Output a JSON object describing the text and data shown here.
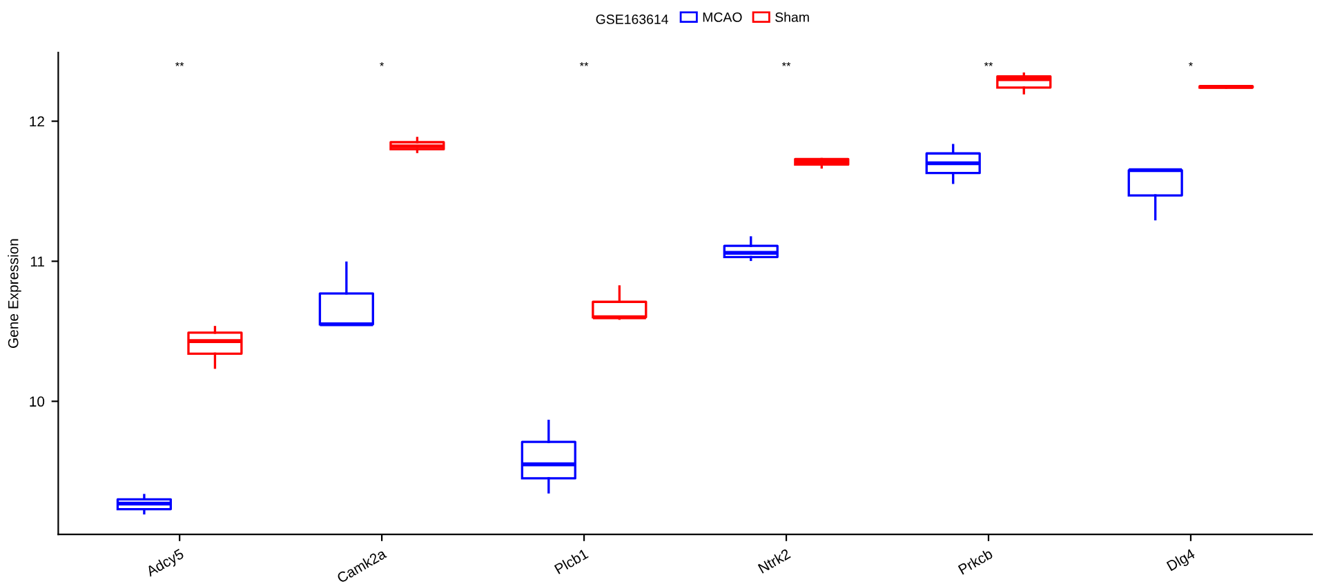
{
  "chart_data": {
    "type": "box",
    "ylabel": "Gene Expression",
    "legend_title": "GSE163614",
    "legend": "top",
    "grid": false,
    "categories": [
      "Adcy5",
      "Camk2a",
      "Plcb1",
      "Ntrk2",
      "Prkcb",
      "Dlg4"
    ],
    "ylim": [
      9.05,
      12.49
    ],
    "yticks": [
      10,
      11,
      12
    ],
    "series": [
      {
        "name": "MCAO",
        "color": "#0000ff",
        "boxes": [
          {
            "low": 9.2,
            "q1": 9.23,
            "median": 9.27,
            "q3": 9.3,
            "high": 9.33
          },
          {
            "low": 10.55,
            "q1": 10.55,
            "median": 10.55,
            "q3": 10.77,
            "high": 10.99
          },
          {
            "low": 9.35,
            "q1": 9.45,
            "median": 9.55,
            "q3": 9.71,
            "high": 9.86
          },
          {
            "low": 11.01,
            "q1": 11.03,
            "median": 11.06,
            "q3": 11.11,
            "high": 11.17
          },
          {
            "low": 11.56,
            "q1": 11.63,
            "median": 11.7,
            "q3": 11.77,
            "high": 11.83
          },
          {
            "low": 11.3,
            "q1": 11.47,
            "median": 11.65,
            "q3": 11.65,
            "high": 11.65
          }
        ]
      },
      {
        "name": "Sham",
        "color": "#ff0000",
        "boxes": [
          {
            "low": 10.24,
            "q1": 10.34,
            "median": 10.43,
            "q3": 10.49,
            "high": 10.53
          },
          {
            "low": 11.78,
            "q1": 11.8,
            "median": 11.82,
            "q3": 11.85,
            "high": 11.88
          },
          {
            "low": 10.59,
            "q1": 10.6,
            "median": 10.6,
            "q3": 10.71,
            "high": 10.82
          },
          {
            "low": 11.67,
            "q1": 11.69,
            "median": 11.71,
            "q3": 11.73,
            "high": 11.73
          },
          {
            "low": 12.2,
            "q1": 12.24,
            "median": 12.3,
            "q3": 12.32,
            "high": 12.34
          },
          {
            "low": 12.24,
            "q1": 12.24,
            "median": 12.245,
            "q3": 12.25,
            "high": 12.25
          }
        ]
      }
    ],
    "annotations": [
      "**",
      "*",
      "**",
      "**",
      "**",
      "*"
    ]
  }
}
